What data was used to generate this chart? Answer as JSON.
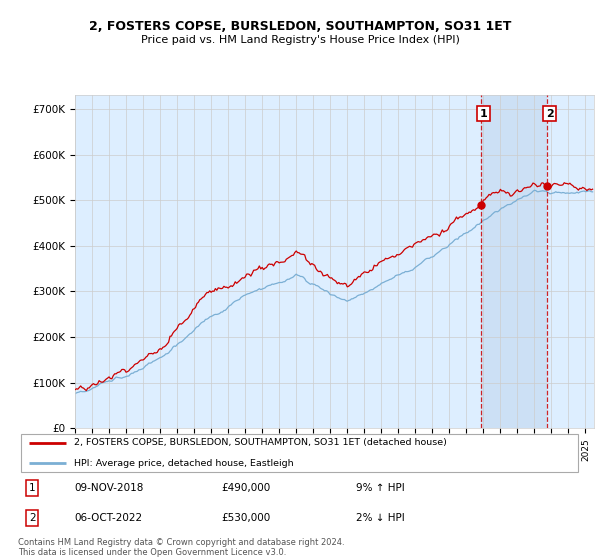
{
  "title": "2, FOSTERS COPSE, BURSLEDON, SOUTHAMPTON, SO31 1ET",
  "subtitle": "Price paid vs. HM Land Registry's House Price Index (HPI)",
  "hpi_label": "HPI: Average price, detached house, Eastleigh",
  "property_label": "2, FOSTERS COPSE, BURSLEDON, SOUTHAMPTON, SO31 1ET (detached house)",
  "footer": "Contains HM Land Registry data © Crown copyright and database right 2024.\nThis data is licensed under the Open Government Licence v3.0.",
  "annotation1": {
    "num": "1",
    "date": "09-NOV-2018",
    "price": "£490,000",
    "hpi": "9% ↑ HPI"
  },
  "annotation2": {
    "num": "2",
    "date": "06-OCT-2022",
    "price": "£530,000",
    "hpi": "2% ↓ HPI"
  },
  "ylim": [
    0,
    730000
  ],
  "yticks": [
    0,
    100000,
    200000,
    300000,
    400000,
    500000,
    600000,
    700000
  ],
  "ytick_labels": [
    "£0",
    "£100K",
    "£200K",
    "£300K",
    "£400K",
    "£500K",
    "£600K",
    "£700K"
  ],
  "property_color": "#cc0000",
  "hpi_color": "#7bafd4",
  "background_color": "#ddeeff",
  "shade_color": "#cce0f5",
  "sale1_x": 2018.854,
  "sale1_y": 490000,
  "sale2_x": 2022.753,
  "sale2_y": 530000,
  "vline_color": "#cc0000",
  "grid_color": "#cccccc",
  "xlim_start": 1995,
  "xlim_end": 2025.5
}
